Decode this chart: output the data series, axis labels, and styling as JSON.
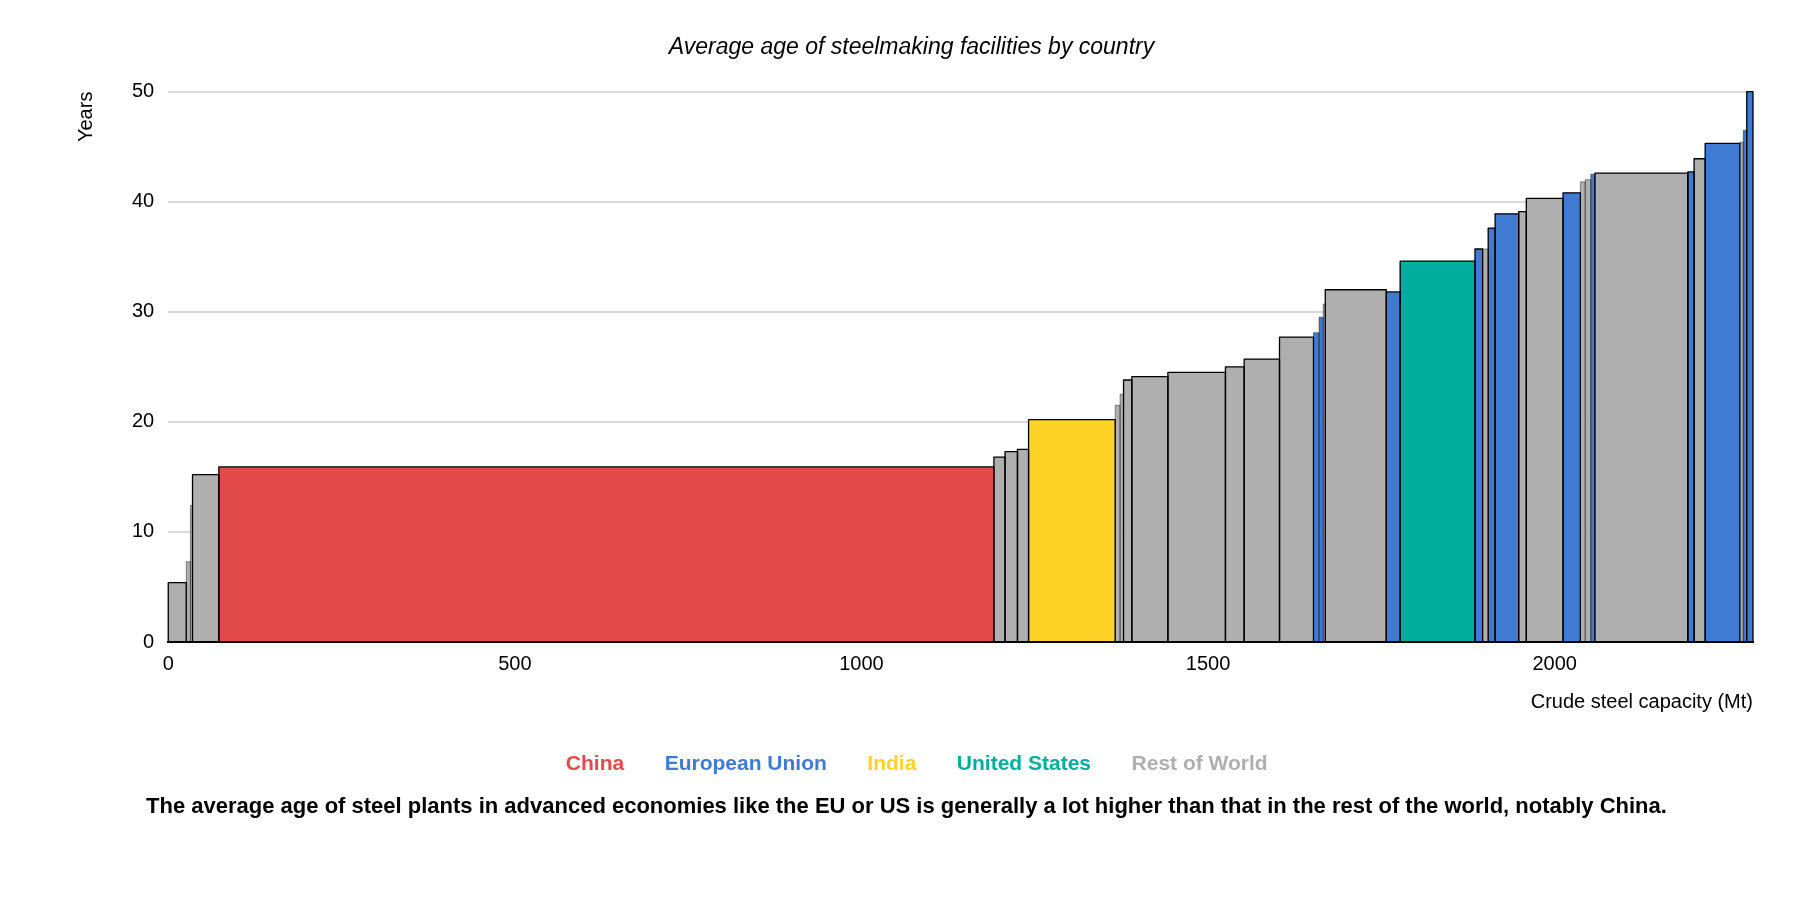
{
  "chart_data": {
    "type": "histogram",
    "title": "Average age of steelmaking facilities by country",
    "xlabel": "Crude steel capacity (Mt)",
    "ylabel": "Years",
    "bins": [
      0,
      26,
      32,
      35,
      73,
      1191,
      1207,
      1225,
      1241,
      1366,
      1373,
      1378,
      1390,
      1442,
      1525,
      1552,
      1603,
      1652,
      1660,
      1666,
      1669,
      1757,
      1777,
      1885,
      1896,
      1904,
      1914,
      1948,
      1959,
      2012,
      2037,
      2044,
      2052,
      2058,
      2192,
      2201,
      2217,
      2267,
      2272,
      2277,
      2286
    ],
    "series": [
      {
        "name": "China",
        "color": "#e34a4a",
        "values": [
          null,
          null,
          null,
          null,
          15.9,
          null,
          null,
          null,
          null,
          null,
          null,
          null,
          null,
          null,
          null,
          null,
          null,
          null,
          null,
          null,
          null,
          null,
          null,
          null,
          null,
          null,
          null,
          null,
          null,
          null,
          null,
          null,
          null,
          null,
          null,
          null,
          null,
          null,
          null,
          null
        ]
      },
      {
        "name": "European Union",
        "color": "#3f7ad3",
        "values": [
          null,
          null,
          null,
          null,
          null,
          null,
          null,
          null,
          null,
          null,
          null,
          null,
          null,
          null,
          null,
          null,
          null,
          28.1,
          29.5,
          null,
          null,
          31.8,
          null,
          35.7,
          null,
          37.6,
          38.9,
          null,
          null,
          40.8,
          null,
          null,
          42.5,
          null,
          42.7,
          null,
          45.3,
          null,
          46.5,
          50
        ]
      },
      {
        "name": "India",
        "color": "#fdd327",
        "values": [
          null,
          null,
          null,
          null,
          null,
          null,
          null,
          null,
          20.2,
          null,
          null,
          null,
          null,
          null,
          null,
          null,
          null,
          null,
          null,
          null,
          null,
          null,
          null,
          null,
          null,
          null,
          null,
          null,
          null,
          null,
          null,
          null,
          null,
          null,
          null,
          null,
          null,
          null,
          null,
          null
        ]
      },
      {
        "name": "United States",
        "color": "#00ae9e",
        "values": [
          null,
          null,
          null,
          null,
          null,
          null,
          null,
          null,
          null,
          null,
          null,
          null,
          null,
          null,
          null,
          null,
          null,
          null,
          null,
          null,
          null,
          null,
          34.6,
          null,
          null,
          null,
          null,
          null,
          null,
          null,
          null,
          null,
          null,
          null,
          null,
          null,
          null,
          null,
          null,
          null
        ]
      },
      {
        "name": "Rest of World",
        "color": "#afafaf",
        "values": [
          5.4,
          7.3,
          12.4,
          15.2,
          null,
          16.8,
          17.3,
          17.5,
          null,
          21.5,
          22.5,
          23.8,
          24.1,
          24.5,
          25.0,
          25.7,
          27.7,
          null,
          null,
          30.7,
          32.0,
          null,
          null,
          null,
          35.7,
          null,
          null,
          39.1,
          40.3,
          null,
          41.8,
          42.0,
          null,
          42.6,
          null,
          43.9,
          null,
          45.4,
          null,
          null
        ]
      }
    ],
    "xlim": [
      0,
      2286
    ],
    "xticks": [
      0,
      500,
      {
        "value": 1000,
        "label": "1000"
      },
      {
        "value": 1500,
        "label": "1500"
      },
      {
        "value": 2000,
        "label": "2000"
      }
    ],
    "ylim": [
      0,
      50
    ],
    "yticks": [
      0,
      10,
      20,
      30,
      40,
      50
    ],
    "grid": "y",
    "legend": "bottom",
    "annotations": [
      "The average age of steel plants in advanced economies like the EU or US is generally a lot higher than that in the rest of the world, notably China."
    ]
  }
}
